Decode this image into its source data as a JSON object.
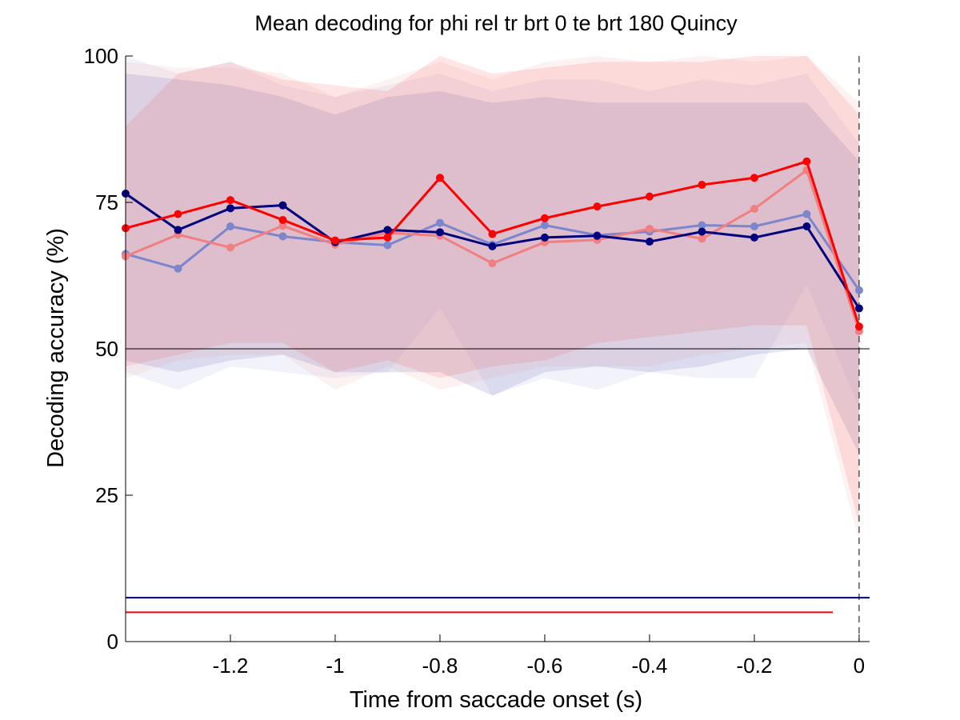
{
  "chart_data": {
    "type": "line",
    "title": "Mean decoding for phi rel tr brt 0 te brt 180  Quincy",
    "xlabel": "Time from saccade onset (s)",
    "ylabel": "Decoding accuracy (%)",
    "xlim": [
      -1.4,
      0.02
    ],
    "ylim": [
      0,
      100
    ],
    "x_ticks": [
      -1.2,
      -1,
      -0.8,
      -0.6,
      -0.4,
      -0.2,
      0
    ],
    "x_tick_labels": [
      "-1.2",
      "-1",
      "-0.8",
      "-0.6",
      "-0.4",
      "-0.2",
      "0"
    ],
    "y_ticks": [
      0,
      25,
      50,
      75,
      100
    ],
    "y_tick_labels": [
      "0",
      "25",
      "50",
      "75",
      "100"
    ],
    "grid": false,
    "reference_lines": [
      {
        "orientation": "horizontal",
        "y": 50,
        "color": "#000000",
        "style": "solid"
      },
      {
        "orientation": "vertical",
        "x": 0,
        "color": "#000000",
        "style": "dashed"
      }
    ],
    "significance_bars": [
      {
        "y": 7.5,
        "x_start": -1.4,
        "x_end": 0.02,
        "color": "#00007f"
      },
      {
        "y": 5,
        "x_start": -1.4,
        "x_end": -0.05,
        "color": "#ff0000"
      }
    ],
    "x": [
      -1.4,
      -1.3,
      -1.2,
      -1.1,
      -1.0,
      -0.9,
      -0.8,
      -0.7,
      -0.6,
      -0.5,
      -0.4,
      -0.3,
      -0.2,
      -0.1,
      0.0
    ],
    "series": [
      {
        "color": "#00007f",
        "values": [
          76.5,
          70.3,
          74.0,
          74.5,
          68.2,
          70.3,
          69.9,
          67.5,
          69.0,
          69.3,
          68.3,
          70.0,
          69.0,
          70.9,
          56.9
        ],
        "band_lower": [
          48,
          46,
          48,
          49,
          46,
          46,
          46,
          42,
          46,
          47,
          46,
          47,
          49,
          50,
          32
        ],
        "band_upper": [
          97,
          96,
          95,
          93,
          90,
          93,
          94,
          92,
          93,
          92,
          92,
          92,
          92,
          92,
          82
        ]
      },
      {
        "color": "#7b86cc",
        "values": [
          66.2,
          63.7,
          70.9,
          69.2,
          68.2,
          67.7,
          71.5,
          67.8,
          71.1,
          69.4,
          70.0,
          71.1,
          70.9,
          73.0,
          60.0
        ],
        "band_lower": [
          46,
          43,
          47,
          46,
          45,
          46,
          57,
          42,
          45,
          43,
          46,
          45,
          45,
          61,
          40
        ],
        "band_upper": [
          100,
          97,
          99,
          95,
          93,
          95,
          97,
          94,
          96,
          96,
          94,
          96,
          95,
          97,
          85
        ]
      },
      {
        "color": "#ff0000",
        "values": [
          70.6,
          73.0,
          75.4,
          72.0,
          68.5,
          69.0,
          79.2,
          69.6,
          72.3,
          74.3,
          76.0,
          78.0,
          79.2,
          82.0,
          53.8
        ],
        "band_lower": [
          47,
          49,
          51,
          51,
          46,
          48,
          45,
          47,
          48,
          51,
          52,
          53,
          54,
          54,
          20
        ],
        "band_upper": [
          88,
          97,
          99,
          96,
          95,
          94,
          100,
          97,
          98,
          99,
          99,
          99,
          100,
          100,
          90
        ]
      },
      {
        "color": "#f08080",
        "values": [
          65.8,
          69.5,
          67.3,
          71.0,
          67.8,
          69.8,
          69.3,
          64.6,
          68.2,
          68.6,
          70.5,
          68.8,
          73.9,
          80.5,
          53.0
        ],
        "band_lower": [
          45,
          48,
          49,
          49,
          43,
          47,
          43,
          45,
          47,
          47,
          47,
          49,
          50,
          51,
          17
        ],
        "band_upper": [
          99,
          98,
          98,
          97,
          93,
          96,
          99,
          96,
          99,
          100,
          99,
          100,
          99,
          100,
          92
        ]
      }
    ]
  }
}
